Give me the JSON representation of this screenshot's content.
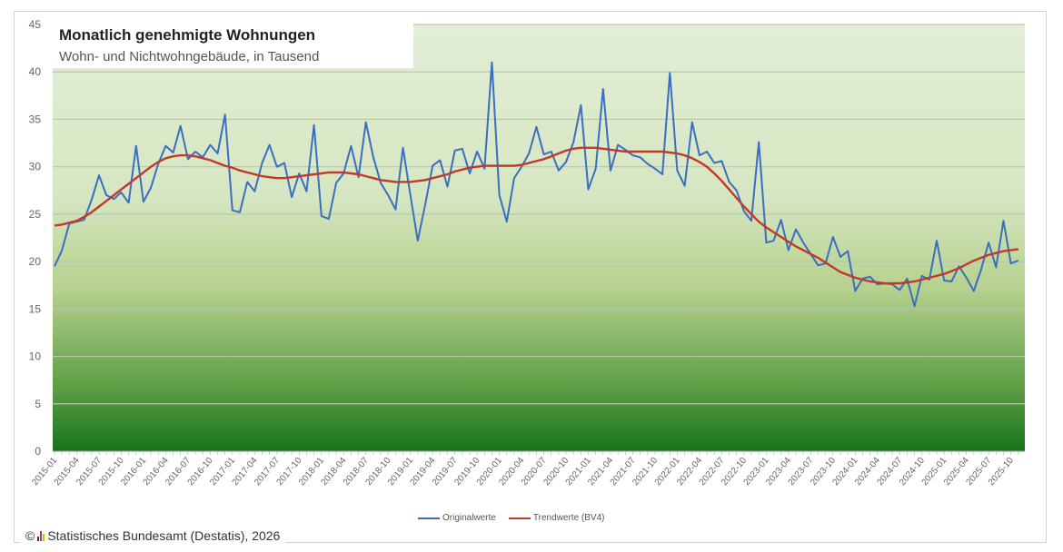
{
  "chart_data": {
    "type": "line",
    "title": "Monatlich genehmigte Wohnungen",
    "subtitle": "Wohn- und Nichtwohngebäude, in Tausend",
    "xlabel": "",
    "ylabel": "",
    "ylim": [
      0,
      45
    ],
    "yticks": [
      "0",
      "5",
      "10",
      "15",
      "20",
      "25",
      "30",
      "35",
      "40",
      "45"
    ],
    "grid": true,
    "legend_position": "bottom-center",
    "start_month": "2015-01",
    "xtick_labels": [
      "2015-01",
      "2015-04",
      "2015-07",
      "2015-10",
      "2016-01",
      "2016-04",
      "2016-07",
      "2016-10",
      "2017-01",
      "2017-04",
      "2017-07",
      "2017-10",
      "2018-01",
      "2018-04",
      "2018-07",
      "2018-10",
      "2019-01",
      "2019-04",
      "2019-07",
      "2019-10",
      "2020-01",
      "2020-04",
      "2020-07",
      "2020-10",
      "2021-01",
      "2021-04",
      "2021-07",
      "2021-10",
      "2022-01",
      "2022-04",
      "2022-07",
      "2022-10",
      "2023-01",
      "2023-04",
      "2023-07",
      "2023-10",
      "2024-01",
      "2024-04",
      "2024-07",
      "2024-10",
      "2025-01",
      "2025-04",
      "2025-07",
      "2025-10"
    ],
    "series": [
      {
        "name": "Originalwerte",
        "color": "#3a6fc0",
        "values": [
          19.5,
          21.2,
          24.0,
          24.2,
          24.4,
          26.5,
          29.1,
          27.0,
          26.6,
          27.3,
          26.2,
          32.2,
          26.3,
          27.8,
          30.3,
          32.2,
          31.5,
          34.3,
          30.8,
          31.6,
          31.0,
          32.3,
          31.4,
          35.5,
          25.4,
          25.2,
          28.4,
          27.4,
          30.4,
          32.3,
          30.0,
          30.4,
          26.8,
          29.3,
          27.4,
          34.4,
          24.8,
          24.5,
          28.3,
          29.3,
          32.2,
          28.9,
          34.7,
          31.0,
          28.3,
          27.0,
          25.5,
          32.0,
          27.0,
          22.2,
          26.0,
          30.1,
          30.7,
          27.9,
          31.7,
          31.9,
          29.3,
          31.6,
          29.8,
          41.0,
          27.0,
          24.2,
          28.8,
          30.0,
          31.4,
          34.2,
          31.3,
          31.6,
          29.6,
          30.5,
          32.6,
          36.5,
          27.6,
          29.8,
          38.2,
          29.6,
          32.3,
          31.8,
          31.2,
          31.0,
          30.3,
          29.8,
          29.2,
          39.9,
          29.6,
          28.0,
          34.7,
          31.2,
          31.6,
          30.4,
          30.6,
          28.4,
          27.5,
          25.3,
          24.3,
          32.6,
          22.0,
          22.2,
          24.4,
          21.2,
          23.4,
          22.0,
          20.8,
          19.6,
          19.8,
          22.6,
          20.5,
          21.1,
          16.9,
          18.2,
          18.4,
          17.6,
          17.7,
          17.6,
          17.0,
          18.2,
          15.3,
          18.5,
          18.1,
          22.2,
          18.0,
          17.9,
          19.5,
          18.3,
          16.9,
          19.2,
          22.0,
          19.4,
          24.3,
          19.8,
          20.1
        ]
      },
      {
        "name": "Trendwerte (BV4)",
        "color": "#c0392b",
        "values": [
          23.8,
          23.9,
          24.1,
          24.3,
          24.7,
          25.2,
          25.8,
          26.4,
          27.0,
          27.6,
          28.2,
          28.8,
          29.4,
          30.0,
          30.5,
          30.9,
          31.1,
          31.2,
          31.2,
          31.1,
          30.9,
          30.7,
          30.4,
          30.1,
          29.9,
          29.6,
          29.4,
          29.2,
          29.0,
          28.9,
          28.8,
          28.8,
          28.9,
          29.0,
          29.1,
          29.2,
          29.3,
          29.4,
          29.4,
          29.4,
          29.3,
          29.2,
          29.0,
          28.8,
          28.6,
          28.5,
          28.4,
          28.4,
          28.4,
          28.5,
          28.6,
          28.8,
          29.0,
          29.2,
          29.5,
          29.7,
          29.9,
          30.0,
          30.1,
          30.1,
          30.1,
          30.1,
          30.1,
          30.2,
          30.4,
          30.6,
          30.8,
          31.1,
          31.4,
          31.7,
          31.9,
          32.0,
          32.0,
          32.0,
          31.9,
          31.8,
          31.7,
          31.6,
          31.6,
          31.6,
          31.6,
          31.6,
          31.6,
          31.5,
          31.4,
          31.2,
          30.9,
          30.5,
          30.0,
          29.3,
          28.5,
          27.6,
          26.7,
          25.8,
          25.0,
          24.2,
          23.6,
          23.1,
          22.6,
          22.1,
          21.6,
          21.2,
          20.8,
          20.4,
          19.9,
          19.4,
          18.9,
          18.6,
          18.3,
          18.1,
          17.9,
          17.8,
          17.7,
          17.7,
          17.7,
          17.8,
          17.9,
          18.1,
          18.3,
          18.5,
          18.7,
          19.0,
          19.3,
          19.7,
          20.1,
          20.4,
          20.7,
          20.9,
          21.1,
          21.2,
          21.3
        ]
      }
    ]
  },
  "legend": {
    "items": [
      "Originalwerte",
      "Trendwerte (BV4)"
    ]
  },
  "footer": {
    "copyright": "©",
    "source": "Statistisches Bundesamt (Destatis), 2026"
  }
}
